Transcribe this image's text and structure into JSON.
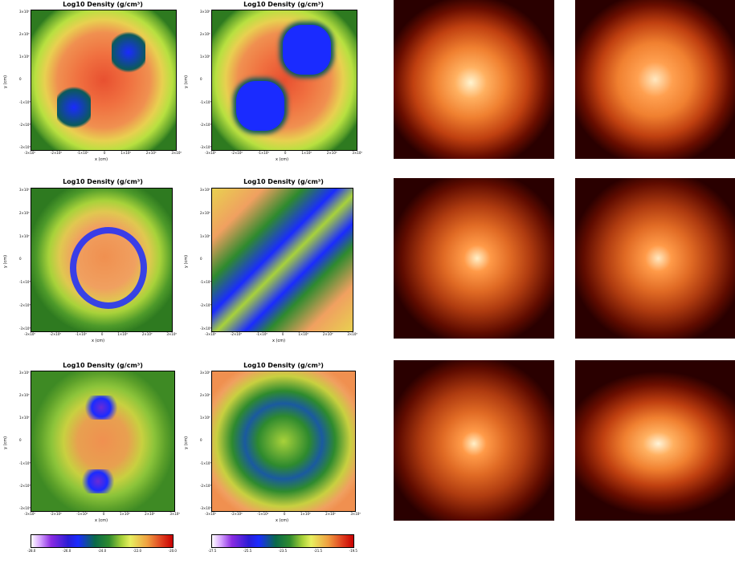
{
  "panel_title": "Log10 Density (g/cm³)",
  "axis_labels": {
    "x": "x (cm)",
    "y": "y (cm)"
  },
  "x_ticks": [
    "-3×10⁹",
    "-2×10⁹",
    "-1×10⁹",
    "0",
    "1×10⁹",
    "2×10⁹",
    "3×10⁹"
  ],
  "y_ticks": [
    "3×10⁹",
    "2×10⁹",
    "1×10⁹",
    "0",
    "-1×10⁹",
    "-2×10⁹",
    "-3×10⁹"
  ],
  "colorbar_left_ticks": [
    "-28.0",
    "-26.0",
    "-24.0",
    "-22.0",
    "-20.0"
  ],
  "colorbar_right_ticks": [
    "-27.5",
    "-25.5",
    "-23.5",
    "-21.5",
    "-19.5"
  ]
}
